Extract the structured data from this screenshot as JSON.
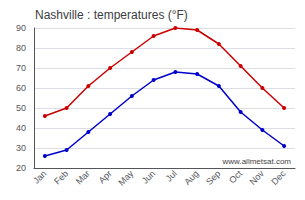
{
  "chart_data": {
    "type": "line",
    "title": "Nashville : temperatures (°F)",
    "categories": [
      "Jan",
      "Feb",
      "Mar",
      "Apr",
      "May",
      "Jun",
      "Jul",
      "Aug",
      "Sep",
      "Oct",
      "Nov",
      "Dec"
    ],
    "series": [
      {
        "color": "#cc0000",
        "values": [
          46,
          50,
          61,
          70,
          78,
          86,
          90,
          89,
          82,
          71,
          60,
          50
        ]
      },
      {
        "color": "#0000cc",
        "values": [
          26,
          29,
          38,
          47,
          56,
          64,
          68,
          67,
          61,
          48,
          39,
          31
        ]
      }
    ],
    "ylim": [
      20,
      90
    ],
    "yticks": [
      20,
      30,
      40,
      50,
      60,
      70,
      80,
      90
    ],
    "grid": true,
    "marker": "circle",
    "annotations": [
      "www.allmetsat.com"
    ]
  }
}
